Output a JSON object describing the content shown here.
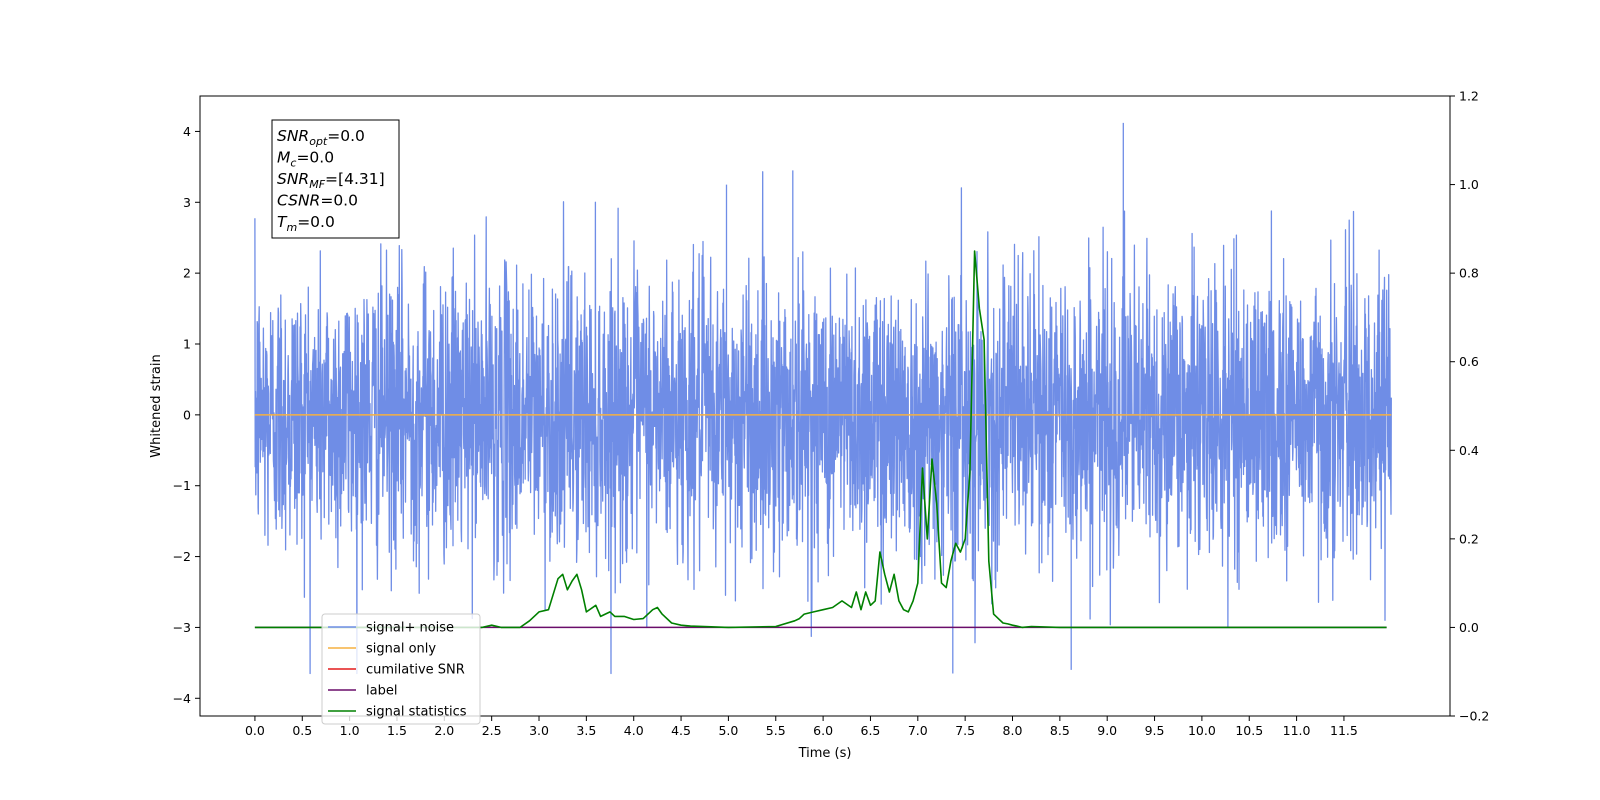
{
  "chart_data": {
    "type": "line",
    "xlabel": "Time (s)",
    "ylabel": "Whitened strain",
    "xlim": [
      -0.58,
      12.62
    ],
    "ylim": [
      -4.25,
      4.5
    ],
    "y2lim": [
      -0.2,
      1.2
    ],
    "x_ticks": [
      0.0,
      0.5,
      1.0,
      1.5,
      2.0,
      2.5,
      3.0,
      3.5,
      4.0,
      4.5,
      5.0,
      5.5,
      6.0,
      6.5,
      7.0,
      7.5,
      8.0,
      8.5,
      9.0,
      9.5,
      10.0,
      10.5,
      11.0,
      11.5
    ],
    "x_tick_labels": [
      "0.0",
      "0.5",
      "1.0",
      "1.5",
      "2.0",
      "2.5",
      "3.0",
      "3.5",
      "4.0",
      "4.5",
      "5.0",
      "5.5",
      "6.0",
      "6.5",
      "7.0",
      "7.5",
      "8.0",
      "8.5",
      "9.0",
      "9.5",
      "10.0",
      "10.5",
      "11.0",
      "11.5"
    ],
    "y_ticks": [
      -4,
      -3,
      -2,
      -1,
      0,
      1,
      2,
      3,
      4
    ],
    "y_tick_labels": [
      "−4",
      "−3",
      "−2",
      "−1",
      "0",
      "1",
      "2",
      "3",
      "4"
    ],
    "y2_ticks": [
      -0.2,
      0.0,
      0.2,
      0.4,
      0.6,
      0.8,
      1.0,
      1.2
    ],
    "y2_tick_labels": [
      "−0.2",
      "0.0",
      "0.2",
      "0.4",
      "0.6",
      "0.8",
      "1.0",
      "1.2"
    ],
    "legend_position": "lower-left",
    "grid": false,
    "series": [
      {
        "name": "signal+ noise",
        "color": "#6f8de6",
        "axis": "left",
        "kind": "noise",
        "x_range": [
          0.0,
          12.0
        ],
        "center": 0.0,
        "typical_range": [
          -2.0,
          2.0
        ],
        "max": 4.12,
        "min": -3.65
      },
      {
        "name": "signal only",
        "color": "#f5b041",
        "axis": "left",
        "x": [
          0.0,
          12.0
        ],
        "values": [
          0.0,
          0.0
        ]
      },
      {
        "name": "cumilative SNR",
        "color": "#e41a1c",
        "axis": "right",
        "x": [],
        "values": []
      },
      {
        "name": "label",
        "color": "#6a0d6a",
        "axis": "right",
        "x": [
          0.0,
          11.95
        ],
        "values": [
          0.0,
          0.0
        ]
      },
      {
        "name": "signal statistics",
        "color": "#008000",
        "axis": "right",
        "x": [
          0.0,
          2.0,
          2.4,
          2.5,
          2.6,
          2.8,
          2.9,
          3.0,
          3.1,
          3.2,
          3.25,
          3.3,
          3.35,
          3.4,
          3.45,
          3.5,
          3.6,
          3.65,
          3.75,
          3.8,
          3.9,
          4.0,
          4.1,
          4.2,
          4.25,
          4.3,
          4.4,
          4.5,
          4.6,
          5.0,
          5.5,
          5.7,
          5.75,
          5.8,
          5.9,
          6.0,
          6.1,
          6.2,
          6.3,
          6.35,
          6.4,
          6.45,
          6.5,
          6.55,
          6.6,
          6.65,
          6.7,
          6.75,
          6.8,
          6.85,
          6.9,
          6.95,
          7.0,
          7.05,
          7.1,
          7.15,
          7.2,
          7.25,
          7.3,
          7.35,
          7.4,
          7.45,
          7.5,
          7.55,
          7.6,
          7.65,
          7.7,
          7.75,
          7.8,
          7.85,
          7.9,
          7.95,
          8.0,
          8.05,
          8.1,
          8.2,
          8.5,
          9.0,
          10.0,
          11.0,
          11.95
        ],
        "values": [
          0.0,
          0.0,
          0.0,
          0.005,
          0.0,
          0.0,
          0.015,
          0.035,
          0.04,
          0.11,
          0.12,
          0.085,
          0.105,
          0.12,
          0.085,
          0.035,
          0.05,
          0.025,
          0.035,
          0.025,
          0.025,
          0.018,
          0.02,
          0.04,
          0.045,
          0.03,
          0.01,
          0.005,
          0.003,
          0.0,
          0.002,
          0.015,
          0.02,
          0.03,
          0.035,
          0.04,
          0.045,
          0.06,
          0.045,
          0.08,
          0.04,
          0.08,
          0.05,
          0.06,
          0.17,
          0.12,
          0.08,
          0.12,
          0.06,
          0.04,
          0.035,
          0.06,
          0.1,
          0.36,
          0.2,
          0.38,
          0.28,
          0.1,
          0.09,
          0.15,
          0.19,
          0.17,
          0.2,
          0.35,
          0.85,
          0.72,
          0.65,
          0.15,
          0.03,
          0.02,
          0.01,
          0.008,
          0.005,
          0.003,
          0.0,
          0.002,
          0.0,
          0.0,
          0.0,
          0.0,
          0.0
        ]
      }
    ],
    "annotation": {
      "lines": [
        {
          "label": "SNR",
          "sub": "opt",
          "value": "=0.0"
        },
        {
          "label": "M",
          "sub": "c",
          "value": "=0.0"
        },
        {
          "label": "SNR",
          "sub": "MF",
          "value": "=[4.31]"
        },
        {
          "label": "CSNR",
          "sub": "",
          "value": "=0.0"
        },
        {
          "label": "T",
          "sub": "m",
          "value": "=0.0"
        }
      ]
    }
  }
}
